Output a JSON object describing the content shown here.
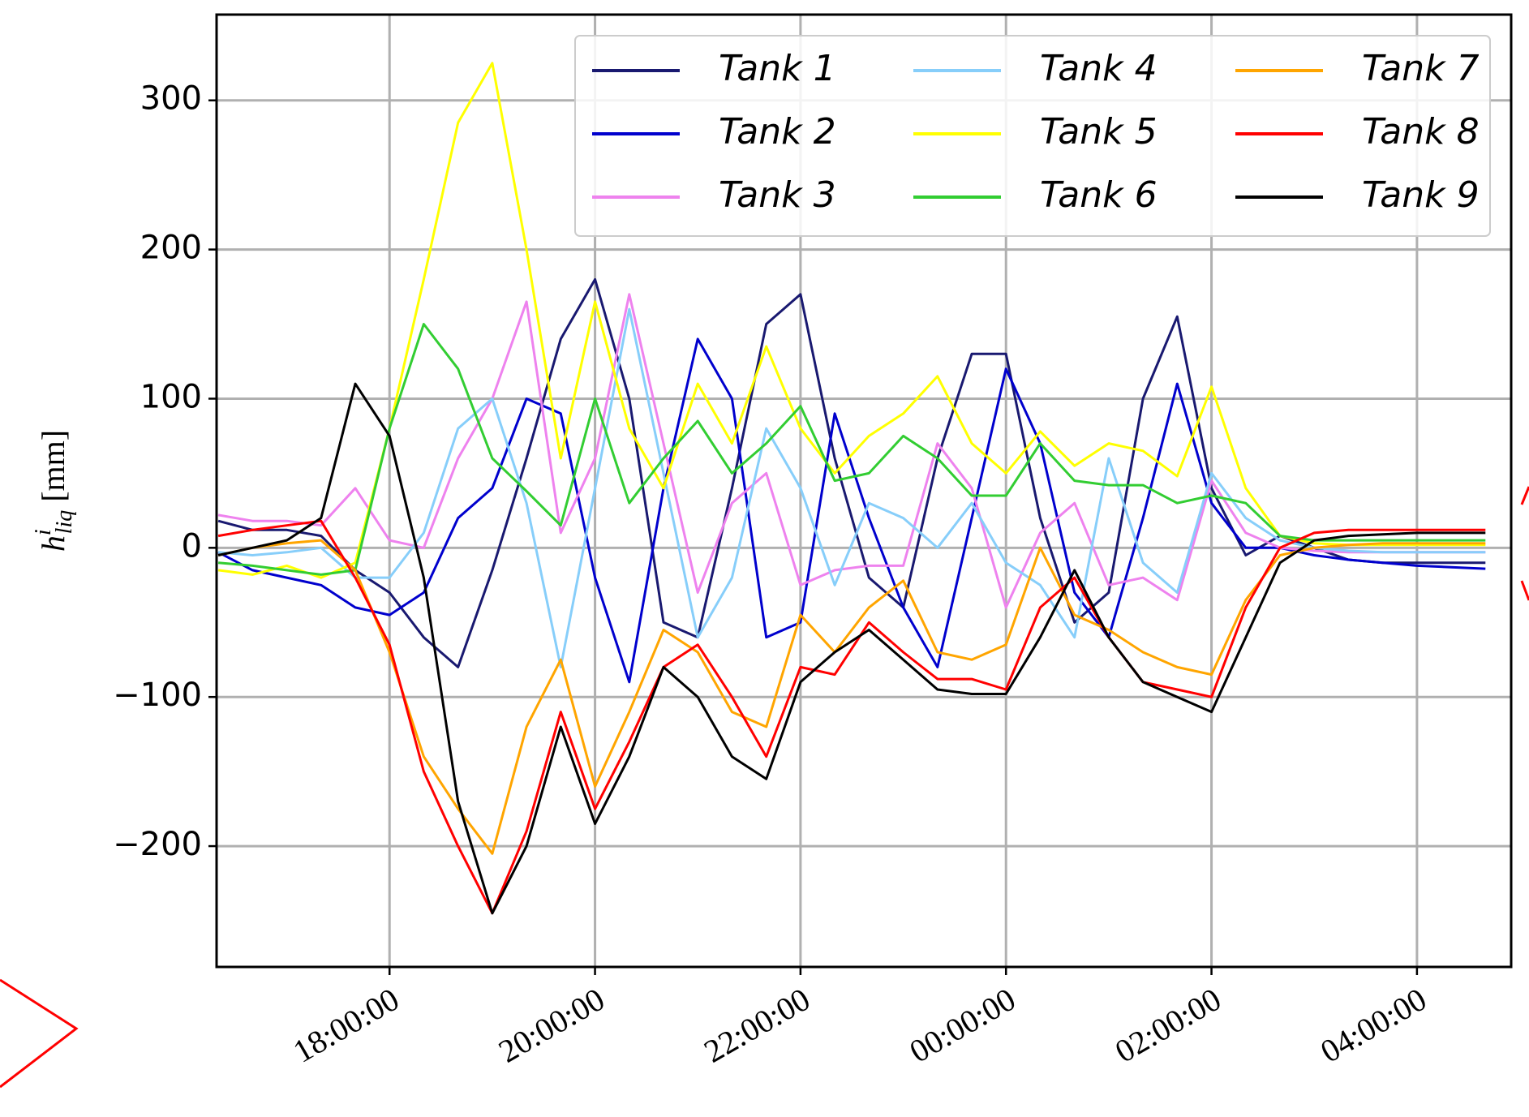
{
  "chart_data": {
    "type": "line",
    "ylabel": {
      "base": "h",
      "sup": "i",
      "sub": "liq",
      "unit": "[mm]"
    },
    "x": [
      "16:20",
      "16:40",
      "17:00",
      "17:20",
      "17:40",
      "18:00",
      "18:20",
      "18:40",
      "19:00",
      "19:20",
      "19:40",
      "20:00",
      "20:20",
      "20:40",
      "21:00",
      "21:20",
      "21:40",
      "22:00",
      "22:20",
      "22:40",
      "23:00",
      "23:20",
      "23:40",
      "00:00",
      "00:20",
      "00:40",
      "01:00",
      "01:20",
      "01:40",
      "02:00",
      "02:20",
      "02:40",
      "03:00",
      "03:20",
      "03:40",
      "04:00",
      "04:20",
      "04:40"
    ],
    "xlim": [
      "16:19",
      "04:55"
    ],
    "xticks": [
      "18:00:00",
      "20:00:00",
      "22:00:00",
      "00:00:00",
      "02:00:00",
      "04:00:00"
    ],
    "ylim": [
      -281,
      357.5
    ],
    "yticks": [
      {
        "value": -200,
        "label": "−200"
      },
      {
        "value": -100,
        "label": "−100"
      },
      0,
      100,
      200,
      300
    ],
    "grid": true,
    "legend": "upper right",
    "series": [
      {
        "name": "Tank 1",
        "color": "#191970",
        "values": [
          18,
          12,
          12,
          8,
          -15,
          -30,
          -60,
          -80,
          -15,
          60,
          140,
          180,
          100,
          -50,
          -60,
          40,
          150,
          170,
          60,
          -20,
          -40,
          60,
          130,
          130,
          20,
          -50,
          -30,
          100,
          155,
          40,
          -5,
          8,
          0,
          -8,
          -10,
          -10,
          -10,
          -10
        ]
      },
      {
        "name": "Tank 2",
        "color": "#0000cd",
        "values": [
          -3,
          -15,
          -20,
          -25,
          -40,
          -45,
          -30,
          20,
          40,
          100,
          90,
          -20,
          -90,
          40,
          140,
          100,
          -60,
          -50,
          90,
          20,
          -40,
          -80,
          20,
          120,
          70,
          -30,
          -60,
          20,
          110,
          30,
          0,
          0,
          -5,
          -8,
          -10,
          -12,
          -13,
          -14
        ]
      },
      {
        "name": "Tank 3",
        "color": "#ee82ee",
        "values": [
          22,
          18,
          18,
          15,
          40,
          5,
          0,
          60,
          100,
          165,
          10,
          60,
          170,
          70,
          -30,
          30,
          50,
          -25,
          -15,
          -12,
          -12,
          70,
          40,
          -40,
          10,
          30,
          -25,
          -20,
          -35,
          45,
          10,
          0,
          -2,
          -3,
          -3,
          -3,
          -3,
          -3
        ]
      },
      {
        "name": "Tank 4",
        "color": "#87cefa",
        "values": [
          -3,
          -5,
          -3,
          0,
          -20,
          -20,
          10,
          80,
          100,
          30,
          -80,
          40,
          160,
          50,
          -60,
          -20,
          80,
          40,
          -25,
          30,
          20,
          0,
          30,
          -10,
          -25,
          -60,
          60,
          -10,
          -30,
          50,
          20,
          5,
          0,
          -2,
          -3,
          -3,
          -3,
          -3
        ]
      },
      {
        "name": "Tank 5",
        "color": "#ffff00",
        "values": [
          -15,
          -18,
          -12,
          -20,
          -10,
          80,
          180,
          285,
          325,
          200,
          60,
          165,
          80,
          40,
          110,
          70,
          135,
          80,
          50,
          75,
          90,
          115,
          70,
          50,
          78,
          55,
          70,
          65,
          48,
          108,
          40,
          8,
          3,
          2,
          2,
          2,
          2,
          2
        ]
      },
      {
        "name": "Tank 6",
        "color": "#32cd32",
        "values": [
          -10,
          -12,
          -15,
          -18,
          -15,
          80,
          150,
          120,
          60,
          38,
          15,
          100,
          30,
          60,
          85,
          50,
          70,
          95,
          45,
          50,
          75,
          60,
          35,
          35,
          70,
          45,
          42,
          42,
          30,
          35,
          30,
          8,
          5,
          5,
          5,
          5,
          5,
          5
        ]
      },
      {
        "name": "Tank 7",
        "color": "#ffa500",
        "values": [
          -5,
          0,
          3,
          5,
          -15,
          -70,
          -140,
          -175,
          -205,
          -120,
          -75,
          -160,
          -110,
          -55,
          -70,
          -110,
          -120,
          -45,
          -70,
          -40,
          -22,
          -70,
          -75,
          -65,
          0,
          -45,
          -55,
          -70,
          -80,
          -85,
          -35,
          -5,
          0,
          2,
          3,
          3,
          3,
          3
        ]
      },
      {
        "name": "Tank 8",
        "color": "#ff0000",
        "values": [
          8,
          12,
          15,
          18,
          -20,
          -65,
          -150,
          -200,
          -245,
          -190,
          -110,
          -175,
          -130,
          -80,
          -65,
          -100,
          -140,
          -80,
          -85,
          -50,
          -70,
          -88,
          -88,
          -95,
          -40,
          -20,
          -60,
          -90,
          -95,
          -100,
          -40,
          0,
          10,
          12,
          12,
          12,
          12,
          12
        ]
      },
      {
        "name": "Tank 9",
        "color": "#000000",
        "values": [
          -5,
          0,
          5,
          20,
          110,
          75,
          -20,
          -170,
          -245,
          -200,
          -120,
          -185,
          -140,
          -80,
          -100,
          -140,
          -155,
          -90,
          -70,
          -55,
          -75,
          -95,
          -98,
          -98,
          -60,
          -15,
          -60,
          -90,
          -100,
          -110,
          -60,
          -10,
          5,
          8,
          9,
          10,
          10,
          10
        ]
      }
    ]
  }
}
